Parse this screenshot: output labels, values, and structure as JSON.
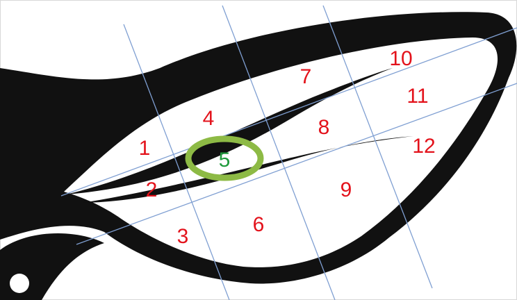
{
  "regions": [
    "1",
    "2",
    "3",
    "4",
    "5",
    "6",
    "7",
    "8",
    "9",
    "10",
    "11",
    "12"
  ]
}
